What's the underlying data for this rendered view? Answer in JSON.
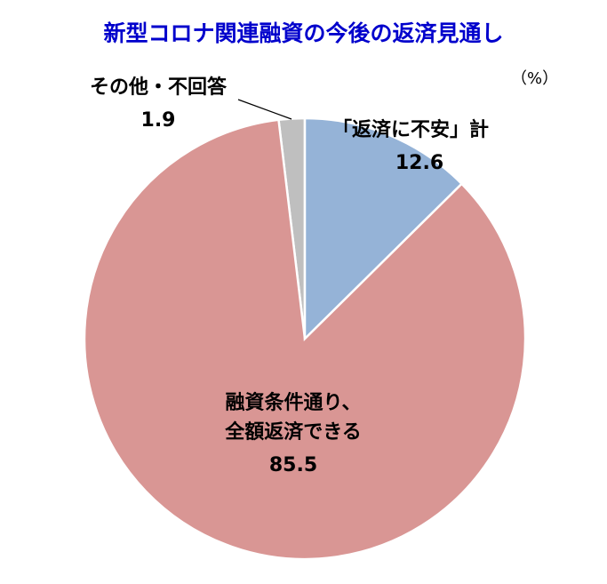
{
  "chart_data": {
    "type": "pie",
    "title": "新型コロナ関連融資の今後の返済見通し",
    "unit_label": "（%）",
    "categories": [
      "「返済に不安」計",
      "融資条件通り、\n全額返済できる",
      "その他・不回答"
    ],
    "values": [
      12.6,
      85.5,
      1.9
    ],
    "colors": [
      "#95b3d7",
      "#d99694",
      "#bfbfbf"
    ]
  }
}
